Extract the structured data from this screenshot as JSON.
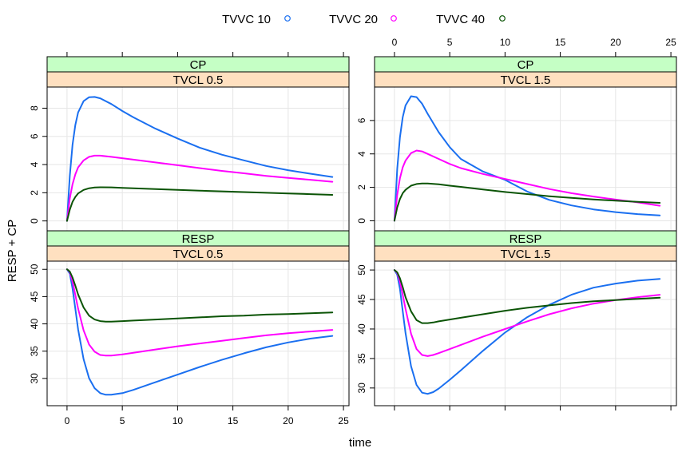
{
  "chart_data": {
    "type": "line",
    "xlabel": "time",
    "ylabel": "RESP + CP",
    "legend": {
      "placement": "top",
      "entries": [
        {
          "name": "TVVC 10",
          "color": "#1a6ff0"
        },
        {
          "name": "TVVC 20",
          "color": "#ff00ff"
        },
        {
          "name": "TVVC 40",
          "color": "#0b5406"
        }
      ]
    },
    "strip_colors": {
      "outer": "#c5ffc5",
      "inner": "#ffe0c0"
    },
    "x_ticks": [
      0,
      5,
      10,
      15,
      20,
      25
    ],
    "xlim": [
      -1.8,
      25.5
    ],
    "panels": [
      {
        "id": "cp-cl05",
        "strip_outer": "CP",
        "strip_inner": "TVCL 0.5",
        "ylim": [
          -0.7,
          9.5
        ],
        "y_ticks": [
          0,
          2,
          4,
          6,
          8
        ],
        "series": [
          {
            "name": "TVVC 10",
            "x": [
              0,
              0.25,
              0.5,
              0.75,
              1,
              1.5,
              2,
              2.5,
              3,
              4,
              5,
              6,
              8,
              10,
              12,
              14,
              16,
              18,
              20,
              22,
              24
            ],
            "y": [
              0,
              3.2,
              5.4,
              6.8,
              7.7,
              8.5,
              8.78,
              8.8,
              8.7,
              8.3,
              7.8,
              7.35,
              6.55,
              5.85,
              5.2,
              4.7,
              4.3,
              3.9,
              3.6,
              3.35,
              3.12
            ]
          },
          {
            "name": "TVVC 20",
            "x": [
              0,
              0.25,
              0.5,
              0.75,
              1,
              1.5,
              2,
              2.5,
              3,
              4,
              5,
              6,
              8,
              10,
              12,
              14,
              16,
              18,
              20,
              22,
              24
            ],
            "y": [
              0,
              1.6,
              2.6,
              3.3,
              3.8,
              4.3,
              4.55,
              4.63,
              4.63,
              4.55,
              4.45,
              4.35,
              4.15,
              3.95,
              3.75,
              3.55,
              3.38,
              3.2,
              3.05,
              2.92,
              2.78
            ]
          },
          {
            "name": "TVVC 40",
            "x": [
              0,
              0.25,
              0.5,
              0.75,
              1,
              1.5,
              2,
              2.5,
              3,
              4,
              5,
              6,
              8,
              10,
              12,
              14,
              16,
              18,
              20,
              22,
              24
            ],
            "y": [
              0,
              0.8,
              1.35,
              1.7,
              1.95,
              2.2,
              2.32,
              2.37,
              2.39,
              2.38,
              2.35,
              2.32,
              2.26,
              2.2,
              2.15,
              2.1,
              2.05,
              2.0,
              1.95,
              1.9,
              1.85
            ]
          }
        ]
      },
      {
        "id": "cp-cl15",
        "strip_outer": "CP",
        "strip_inner": "TVCL 1.5",
        "ylim": [
          -0.6,
          8.0
        ],
        "y_ticks": [
          0,
          2,
          4,
          6
        ],
        "series": [
          {
            "name": "TVVC 10",
            "x": [
              0,
              0.25,
              0.5,
              0.75,
              1,
              1.5,
              2,
              2.5,
              3,
              4,
              5,
              6,
              8,
              10,
              12,
              14,
              16,
              18,
              20,
              22,
              24
            ],
            "y": [
              0,
              3.1,
              5.0,
              6.2,
              6.9,
              7.45,
              7.4,
              7.0,
              6.4,
              5.3,
              4.4,
              3.7,
              2.95,
              2.45,
              1.75,
              1.25,
              0.92,
              0.68,
              0.52,
              0.4,
              0.32
            ]
          },
          {
            "name": "TVVC 20",
            "x": [
              0,
              0.25,
              0.5,
              0.75,
              1,
              1.5,
              2,
              2.5,
              3,
              4,
              5,
              6,
              8,
              10,
              12,
              14,
              16,
              18,
              20,
              22,
              24
            ],
            "y": [
              0,
              1.55,
              2.55,
              3.2,
              3.6,
              4.05,
              4.2,
              4.15,
              4.0,
              3.7,
              3.4,
              3.15,
              2.8,
              2.5,
              2.2,
              1.9,
              1.65,
              1.45,
              1.27,
              1.1,
              0.9
            ]
          },
          {
            "name": "TVVC 40",
            "x": [
              0,
              0.25,
              0.5,
              0.75,
              1,
              1.5,
              2,
              2.5,
              3,
              4,
              5,
              6,
              8,
              10,
              12,
              14,
              16,
              18,
              20,
              22,
              24
            ],
            "y": [
              0,
              0.8,
              1.3,
              1.65,
              1.85,
              2.1,
              2.2,
              2.23,
              2.23,
              2.18,
              2.1,
              2.03,
              1.87,
              1.72,
              1.6,
              1.47,
              1.37,
              1.28,
              1.2,
              1.13,
              1.07
            ]
          }
        ]
      },
      {
        "id": "resp-cl05",
        "strip_outer": "RESP",
        "strip_inner": "TVCL 0.5",
        "ylim": [
          25,
          51.5
        ],
        "y_ticks": [
          30,
          35,
          40,
          45,
          50
        ],
        "series": [
          {
            "name": "TVVC 10",
            "x": [
              0,
              0.25,
              0.5,
              0.75,
              1,
              1.5,
              2,
              2.5,
              3,
              3.5,
              4,
              5,
              6,
              8,
              10,
              12,
              14,
              16,
              18,
              20,
              22,
              24
            ],
            "y": [
              50,
              49.2,
              46.5,
              42.8,
              39.0,
              33.5,
              30.0,
              28.2,
              27.3,
              27.0,
              27.0,
              27.3,
              27.9,
              29.3,
              30.7,
              32.1,
              33.4,
              34.6,
              35.7,
              36.6,
              37.3,
              37.8
            ]
          },
          {
            "name": "TVVC 20",
            "x": [
              0,
              0.25,
              0.5,
              0.75,
              1,
              1.5,
              2,
              2.5,
              3,
              3.5,
              4,
              5,
              6,
              8,
              10,
              12,
              14,
              16,
              18,
              20,
              22,
              24
            ],
            "y": [
              50,
              49.5,
              47.8,
              45.3,
              42.8,
              38.8,
              36.2,
              34.9,
              34.3,
              34.2,
              34.2,
              34.4,
              34.7,
              35.3,
              35.9,
              36.4,
              36.9,
              37.4,
              37.9,
              38.3,
              38.6,
              38.9
            ]
          },
          {
            "name": "TVVC 40",
            "x": [
              0,
              0.25,
              0.5,
              0.75,
              1,
              1.5,
              2,
              2.5,
              3,
              3.5,
              4,
              5,
              6,
              8,
              10,
              12,
              14,
              16,
              18,
              20,
              22,
              24
            ],
            "y": [
              50,
              49.6,
              48.5,
              47.0,
              45.4,
              43.0,
              41.5,
              40.8,
              40.5,
              40.4,
              40.4,
              40.5,
              40.6,
              40.8,
              41.0,
              41.2,
              41.4,
              41.5,
              41.7,
              41.8,
              41.95,
              42.1
            ]
          }
        ]
      },
      {
        "id": "resp-cl15",
        "strip_outer": "RESP",
        "strip_inner": "TVCL 1.5",
        "ylim": [
          27,
          51.5
        ],
        "y_ticks": [
          30,
          35,
          40,
          45,
          50
        ],
        "series": [
          {
            "name": "TVVC 10",
            "x": [
              0,
              0.25,
              0.5,
              0.75,
              1,
              1.5,
              2,
              2.5,
              3,
              3.5,
              4,
              5,
              6,
              8,
              10,
              12,
              14,
              16,
              18,
              20,
              22,
              24
            ],
            "y": [
              50,
              49.2,
              46.8,
              43.0,
              39.3,
              33.7,
              30.5,
              29.2,
              29.0,
              29.3,
              29.9,
              31.4,
              33.0,
              36.3,
              39.4,
              42.0,
              44.1,
              45.8,
              47.0,
              47.7,
              48.2,
              48.5
            ]
          },
          {
            "name": "TVVC 20",
            "x": [
              0,
              0.25,
              0.5,
              0.75,
              1,
              1.5,
              2,
              2.5,
              3,
              3.5,
              4,
              5,
              6,
              8,
              10,
              12,
              14,
              16,
              18,
              20,
              22,
              24
            ],
            "y": [
              50,
              49.5,
              48.0,
              45.8,
              43.4,
              39.2,
              36.6,
              35.6,
              35.4,
              35.6,
              35.9,
              36.6,
              37.3,
              38.7,
              40.0,
              41.3,
              42.5,
              43.5,
              44.3,
              44.9,
              45.4,
              45.8
            ]
          },
          {
            "name": "TVVC 40",
            "x": [
              0,
              0.25,
              0.5,
              0.75,
              1,
              1.5,
              2,
              2.5,
              3,
              3.5,
              4,
              5,
              6,
              8,
              10,
              12,
              14,
              16,
              18,
              20,
              22,
              24
            ],
            "y": [
              50,
              49.6,
              48.6,
              47.1,
              45.4,
              43.0,
              41.5,
              41.0,
              41.0,
              41.1,
              41.3,
              41.6,
              41.9,
              42.5,
              43.1,
              43.6,
              44.0,
              44.4,
              44.7,
              44.9,
              45.1,
              45.3
            ]
          }
        ]
      }
    ]
  }
}
